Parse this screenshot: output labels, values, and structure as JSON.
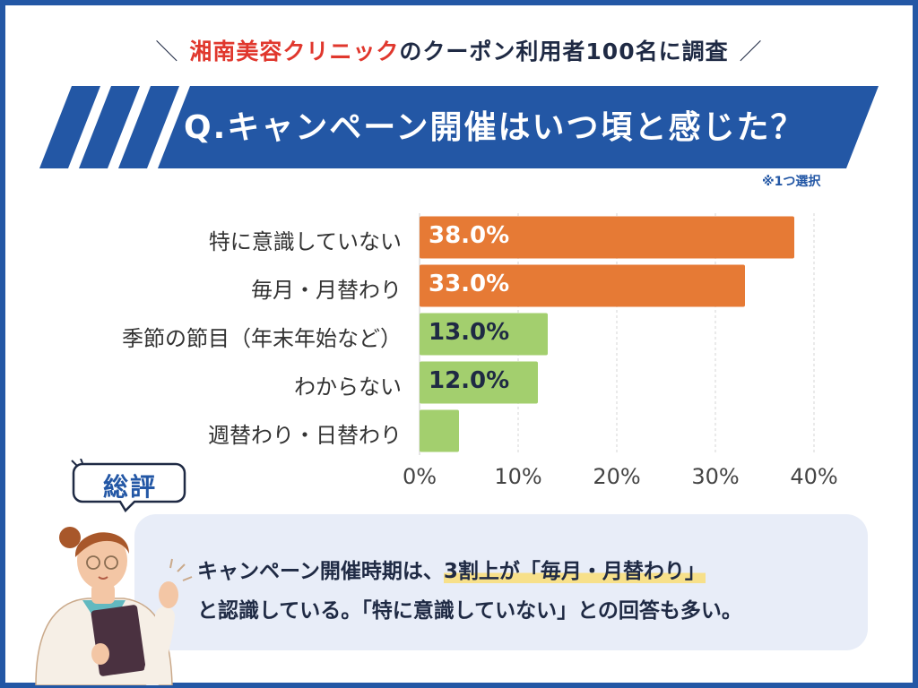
{
  "header": {
    "prefix_slash": "＼",
    "brand": "湘南美容クリニック",
    "subtitle_rest": "のクーポン利用者100名に調査",
    "suffix_slash": "／"
  },
  "question": "Q.キャンペーン開催はいつ頃と感じた？",
  "note": "※1つ選択",
  "colors": {
    "brand_blue": "#2357a5",
    "accent_red": "#e0372d",
    "bar_orange": "#e67a35",
    "bar_green": "#a3cf6e"
  },
  "chart_data": {
    "type": "bar",
    "orientation": "horizontal",
    "categories": [
      "特に意識していない",
      "毎月・月替わり",
      "季節の節目（年末年始など）",
      "わからない",
      "週替わり・日替わり"
    ],
    "values": [
      38.0,
      33.0,
      13.0,
      12.0,
      4.0
    ],
    "value_labels": [
      "38.0%",
      "33.0%",
      "13.0%",
      "12.0%",
      ""
    ],
    "bar_colors": [
      "#e67a35",
      "#e67a35",
      "#a3cf6e",
      "#a3cf6e",
      "#a3cf6e"
    ],
    "label_colors": [
      "#ffffff",
      "#ffffff",
      "#1f2a44",
      "#1f2a44",
      "#1f2a44"
    ],
    "xlim": [
      0,
      40
    ],
    "xticks": [
      0,
      10,
      20,
      30,
      40
    ],
    "xtick_labels": [
      "0%",
      "10%",
      "20%",
      "30%",
      "40%"
    ],
    "grid": "vertical dashed"
  },
  "review": {
    "tag": "総評",
    "line1_pre": "キャンペーン開催時期は、",
    "line1_hl": "3割上が「毎月・月替わり」",
    "line2": "と認識している。「特に意識していない」との回答も多い。"
  }
}
